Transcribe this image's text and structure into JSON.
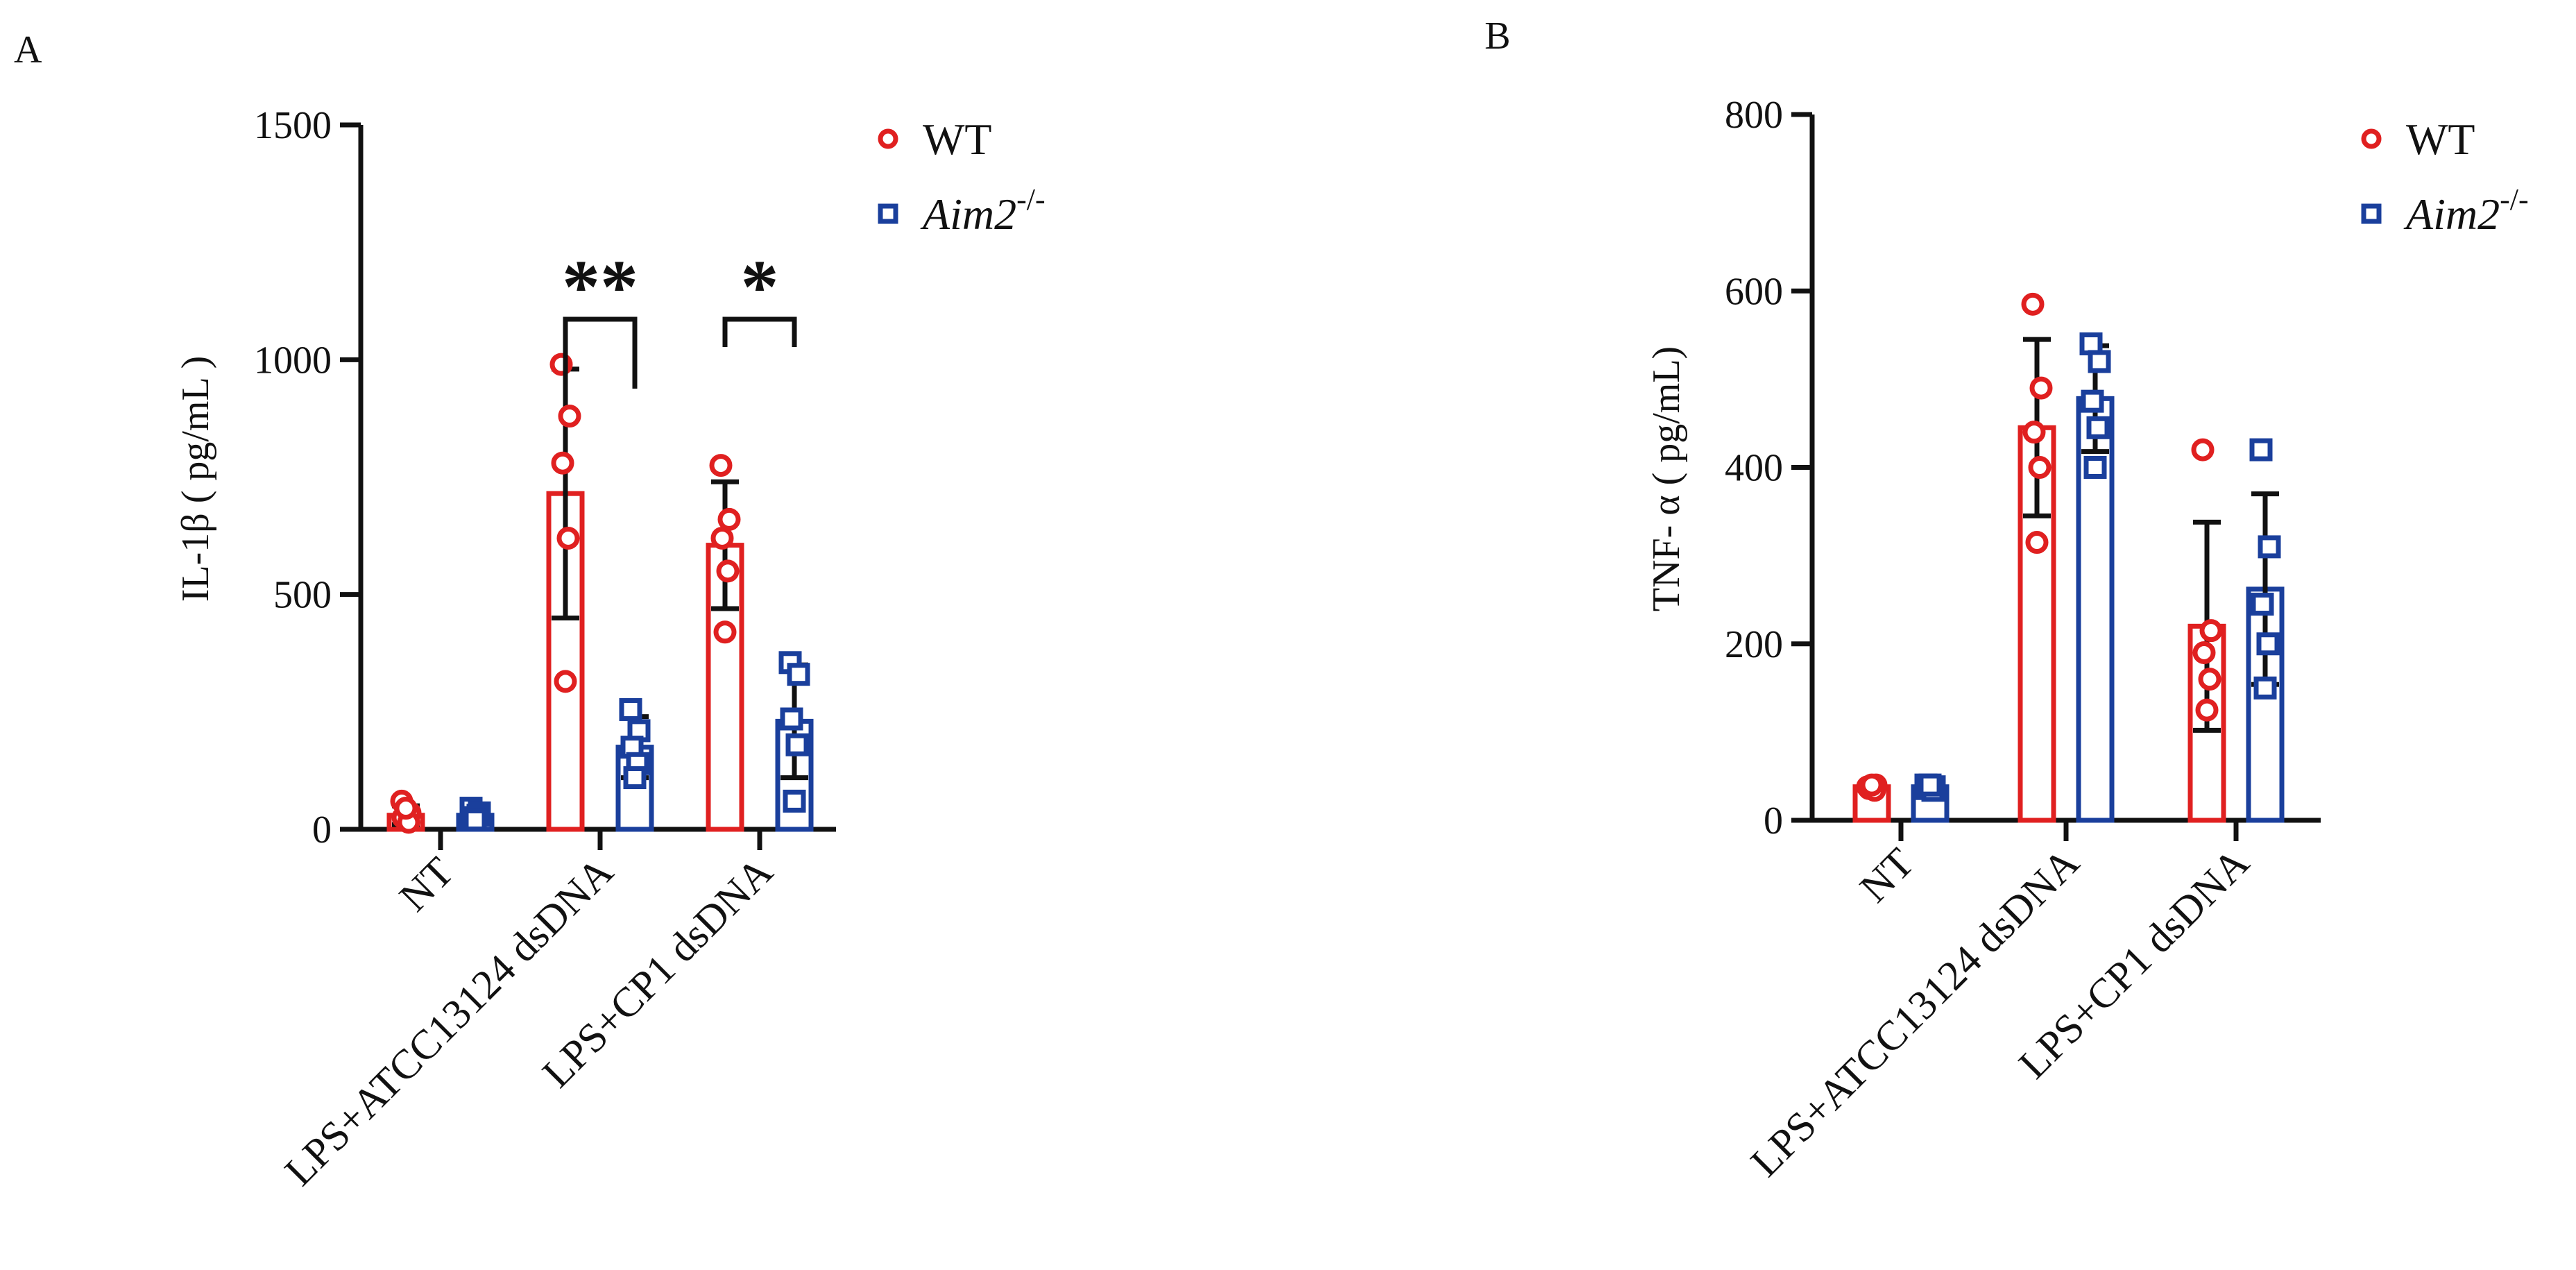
{
  "legend_sup": "-/-",
  "chart_data": [
    {
      "type": "bar",
      "panel": "A",
      "title": "",
      "xlabel": "",
      "ylabel": "IL-1β ( pg/mL )",
      "ylim": [
        0,
        1500
      ],
      "yticks": [
        0,
        500,
        1000,
        1500
      ],
      "categories": [
        "NT",
        "LPS+ATCC13124 dsDNA",
        "LPS+CP1 dsDNA"
      ],
      "series": [
        {
          "name": "WT",
          "values": [
            30,
            715,
            605
          ],
          "sd": [
            20,
            265,
            135
          ],
          "points": [
            [
              60,
              35,
              25,
              15,
              45
            ],
            [
              990,
              880,
              780,
              620,
              315
            ],
            [
              775,
              660,
              620,
              550,
              420
            ]
          ],
          "color": "#e02020",
          "marker": "circle"
        },
        {
          "name": "Aim2",
          "values": [
            30,
            175,
            230
          ],
          "sd": [
            15,
            65,
            120
          ],
          "points": [
            [
              45,
              35,
              25,
              30,
              20
            ],
            [
              255,
              210,
              175,
              140,
              110
            ],
            [
              355,
              330,
              235,
              180,
              60
            ]
          ],
          "color": "#1a3f9c",
          "marker": "square"
        }
      ],
      "annotations": [
        {
          "text": "**",
          "category": 1
        },
        {
          "text": "*",
          "category": 2
        }
      ]
    },
    {
      "type": "bar",
      "panel": "B",
      "title": "",
      "xlabel": "",
      "ylabel": "TNF- α ( pg/mL)",
      "ylim": [
        0,
        800
      ],
      "yticks": [
        0,
        200,
        400,
        600,
        800
      ],
      "categories": [
        "NT",
        "LPS+ATCC13124 dsDNA",
        "LPS+CP1 dsDNA"
      ],
      "series": [
        {
          "name": "WT",
          "values": [
            38,
            445,
            220
          ],
          "sd": [
            4,
            100,
            118
          ],
          "points": [
            [
              38,
              40,
              36,
              34,
              40
            ],
            [
              585,
              490,
              440,
              400,
              315
            ],
            [
              420,
              215,
              190,
              160,
              125
            ]
          ],
          "color": "#e02020",
          "marker": "circle"
        },
        {
          "name": "Aim2",
          "values": [
            38,
            478,
            262
          ],
          "sd": [
            4,
            60,
            108
          ],
          "points": [
            [
              40,
              38,
              36,
              34,
              40
            ],
            [
              540,
              520,
              475,
              445,
              400
            ],
            [
              420,
              310,
              245,
              200,
              150
            ]
          ],
          "color": "#1a3f9c",
          "marker": "square"
        }
      ],
      "annotations": []
    }
  ]
}
